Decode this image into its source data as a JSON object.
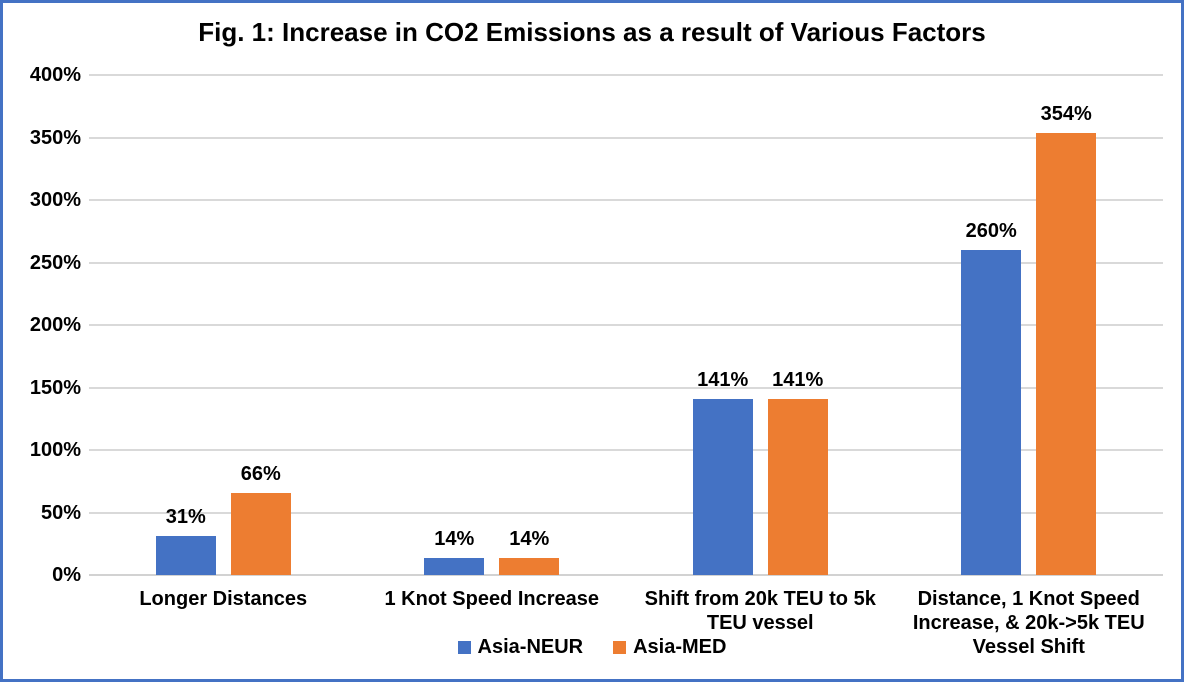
{
  "title": "Fig. 1: Increase in CO2 Emissions as a result of Various Factors",
  "chart_data": {
    "type": "bar",
    "title": "Fig. 1: Increase in CO2 Emissions as a result of Various Factors",
    "categories": [
      "Longer Distances",
      "1 Knot Speed Increase",
      "Shift from 20k TEU to 5k\nTEU vessel",
      "Distance, 1 Knot Speed\nIncrease, & 20k->5k TEU\nVessel Shift"
    ],
    "series": [
      {
        "name": "Asia-NEUR",
        "color": "#4472C4",
        "values": [
          31,
          14,
          141,
          260
        ]
      },
      {
        "name": "Asia-MED",
        "color": "#ED7D31",
        "values": [
          66,
          14,
          141,
          354
        ]
      }
    ],
    "data_labels": [
      [
        "31%",
        "14%",
        "141%",
        "260%"
      ],
      [
        "66%",
        "14%",
        "141%",
        "354%"
      ]
    ],
    "xlabel": "",
    "ylabel": "",
    "ylim": [
      0,
      400
    ],
    "ytick_step": 50,
    "ytick_labels": [
      "0%",
      "50%",
      "100%",
      "150%",
      "200%",
      "250%",
      "300%",
      "350%",
      "400%"
    ],
    "grid": true,
    "legend_position": "bottom-center"
  },
  "colors": {
    "series_blue": "#4472C4",
    "series_orange": "#ED7D31",
    "gridline": "#D9D9D9",
    "frame_border": "#4472C4",
    "text": "#000000",
    "background": "#FFFFFF"
  }
}
